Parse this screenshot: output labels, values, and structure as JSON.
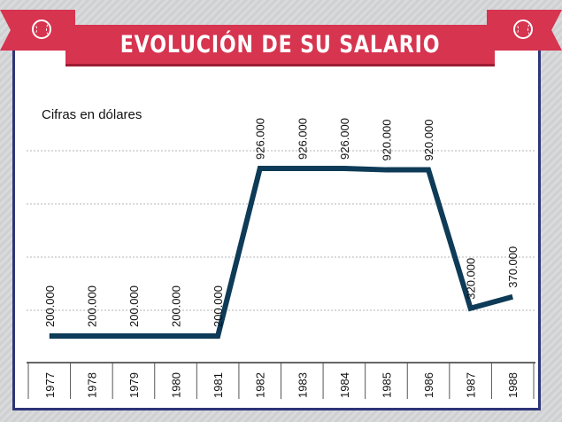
{
  "title": "EVOLUCIÓN DE SU SALARIO",
  "icons": {
    "left": "baseball-icon",
    "right": "baseball-icon"
  },
  "colors": {
    "banner": "#d6344f",
    "frame": "#2e3578",
    "line": "#0e3b57",
    "background": "#d9dadc"
  },
  "chart_data": {
    "type": "line",
    "subtitle": "Cifras en dólares",
    "categories": [
      "1977",
      "1978",
      "1979",
      "1980",
      "1981",
      "1982",
      "1983",
      "1984",
      "1985",
      "1986",
      "1987",
      "1988"
    ],
    "values": [
      200000,
      200000,
      200000,
      200000,
      200000,
      926000,
      926000,
      926000,
      920000,
      920000,
      320000,
      370000
    ],
    "value_labels": [
      "200.000",
      "200.000",
      "200.000",
      "200.000",
      "200.000",
      "926.000",
      "926.000",
      "926.000",
      "920.000",
      "920.000",
      "320.000",
      "370.000"
    ],
    "grid": true
  }
}
